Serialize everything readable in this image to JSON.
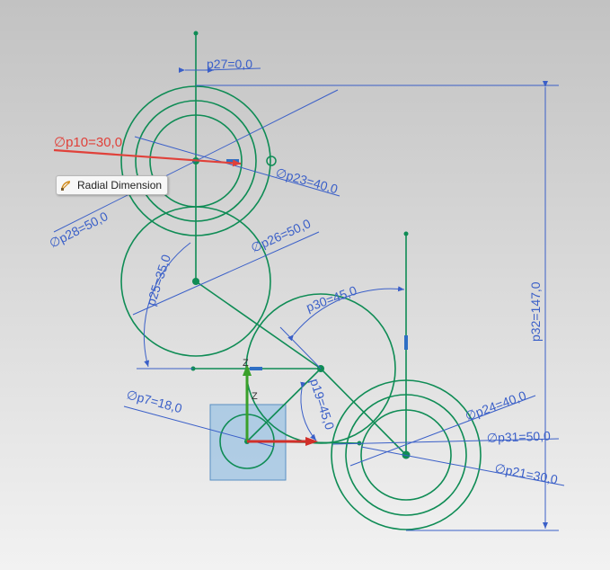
{
  "tooltip": {
    "label": "Radial Dimension",
    "icon": "radial-dimension-icon"
  },
  "dimensions": {
    "p27": "p27=0,0",
    "p10": "∅p10=30,0",
    "p23": "∅p23=40,0",
    "p28": "∅p28=50,0",
    "p26": "∅p26=50,0",
    "p25": "p25=35,0",
    "p30": "p30=45,0",
    "p32": "p32=147,0",
    "p7": "∅p7=18,0",
    "p19": "p19=45,0",
    "p24": "∅p24=40,0",
    "p31": "∅p31=50,0",
    "p21": "∅p21=30,0"
  },
  "axes": {
    "z1": "Z",
    "z2": "Z"
  },
  "colors": {
    "background_top": "#c2c2c2",
    "background_bottom": "#f2f2f2",
    "geometry": "#0f8c55",
    "dimension": "#3a5fc8",
    "active_dimension": "#e0413a",
    "datum_fill": "#9cc3e3"
  }
}
